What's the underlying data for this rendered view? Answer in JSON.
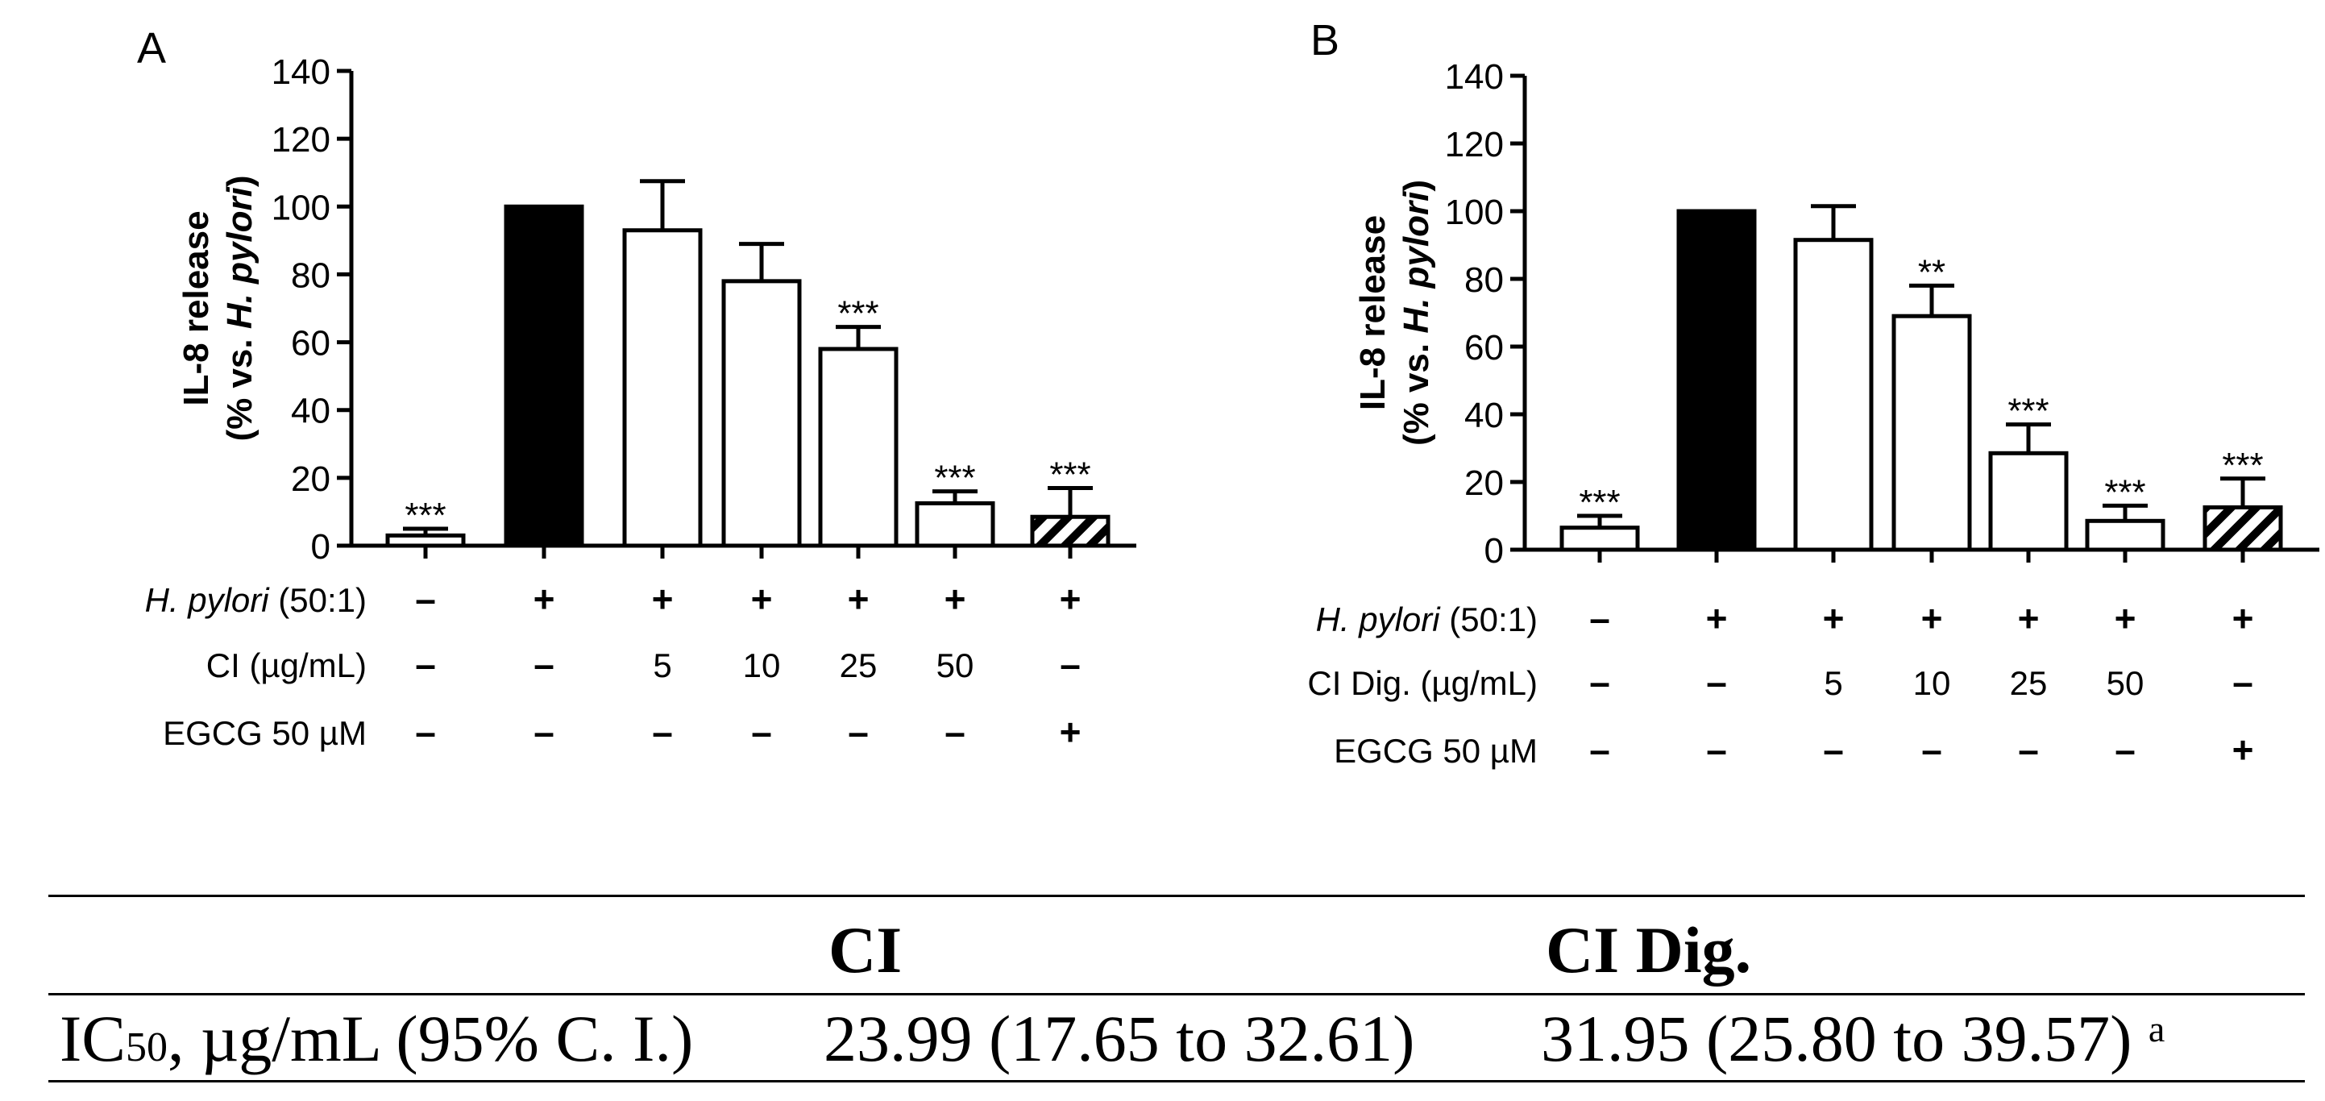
{
  "chart_data": [
    {
      "panel_label": "A",
      "type": "bar",
      "ylabel_line1": "IL-8 release",
      "ylabel_line2_prefix": "(% vs. ",
      "ylabel_line2_italic": "H. pylori",
      "ylabel_line2_suffix": ")",
      "ylim": [
        0,
        140
      ],
      "yticks": [
        "0",
        "20",
        "40",
        "60",
        "80",
        "100",
        "120",
        "140"
      ],
      "bars": [
        {
          "value": 3,
          "error": 2,
          "fill": "white",
          "sig": "***"
        },
        {
          "value": 100,
          "error": 0,
          "fill": "black",
          "sig": ""
        },
        {
          "value": 93,
          "error": 14.5,
          "fill": "white",
          "sig": ""
        },
        {
          "value": 78,
          "error": 11,
          "fill": "white",
          "sig": ""
        },
        {
          "value": 58,
          "error": 6.5,
          "fill": "white",
          "sig": "***"
        },
        {
          "value": 12.5,
          "error": 3.5,
          "fill": "white",
          "sig": "***"
        },
        {
          "value": 8.5,
          "error": 8.5,
          "fill": "hatch",
          "sig": "***"
        }
      ],
      "condition_rows": [
        {
          "label_italic": "H. pylori",
          "label_rest": " (50:1)",
          "values": [
            "–",
            "+",
            "+",
            "+",
            "+",
            "+",
            "+"
          ]
        },
        {
          "label_italic": "",
          "label_rest": "CI  (µg/mL)",
          "values": [
            "–",
            "–",
            "5",
            "10",
            "25",
            "50",
            "–"
          ]
        },
        {
          "label_italic": "",
          "label_rest": "EGCG 50 µM",
          "values": [
            "–",
            "–",
            "–",
            "–",
            "–",
            "–",
            "+"
          ]
        }
      ]
    },
    {
      "panel_label": "B",
      "type": "bar",
      "ylabel_line1": "IL-8 release",
      "ylabel_line2_prefix": "(% vs. ",
      "ylabel_line2_italic": "H. pylori",
      "ylabel_line2_suffix": ")",
      "ylim": [
        0,
        140
      ],
      "yticks": [
        "0",
        "20",
        "40",
        "60",
        "80",
        "100",
        "120",
        "140"
      ],
      "bars": [
        {
          "value": 6.5,
          "error": 3.5,
          "fill": "white",
          "sig": "***"
        },
        {
          "value": 100,
          "error": 0,
          "fill": "black",
          "sig": ""
        },
        {
          "value": 91.5,
          "error": 10,
          "fill": "white",
          "sig": ""
        },
        {
          "value": 69,
          "error": 9,
          "fill": "white",
          "sig": "**"
        },
        {
          "value": 28.5,
          "error": 8.5,
          "fill": "white",
          "sig": "***"
        },
        {
          "value": 8.5,
          "error": 4.5,
          "fill": "white",
          "sig": "***"
        },
        {
          "value": 12.5,
          "error": 8.5,
          "fill": "hatch",
          "sig": "***"
        }
      ],
      "condition_rows": [
        {
          "label_italic": "H. pylori",
          "label_rest": " (50:1)",
          "values": [
            "–",
            "+",
            "+",
            "+",
            "+",
            "+",
            "+"
          ]
        },
        {
          "label_italic": "",
          "label_rest": "CI Dig. (µg/mL)",
          "values": [
            "–",
            "–",
            "5",
            "10",
            "25",
            "50",
            "–"
          ]
        },
        {
          "label_italic": "",
          "label_rest": "EGCG 50 µM",
          "values": [
            "–",
            "–",
            "–",
            "–",
            "–",
            "–",
            "+"
          ]
        }
      ]
    }
  ],
  "table": {
    "col1_header": "CI",
    "col2_header": "CI Dig.",
    "row_label_main": "IC",
    "row_label_sub": "50",
    "row_label_rest": ", µg/mL (95% C. I.)",
    "col1_value": "23.99 (17.65 to 32.61)",
    "col2_value": "31.95 (25.80 to 39.57)",
    "col2_footnote": "a"
  }
}
